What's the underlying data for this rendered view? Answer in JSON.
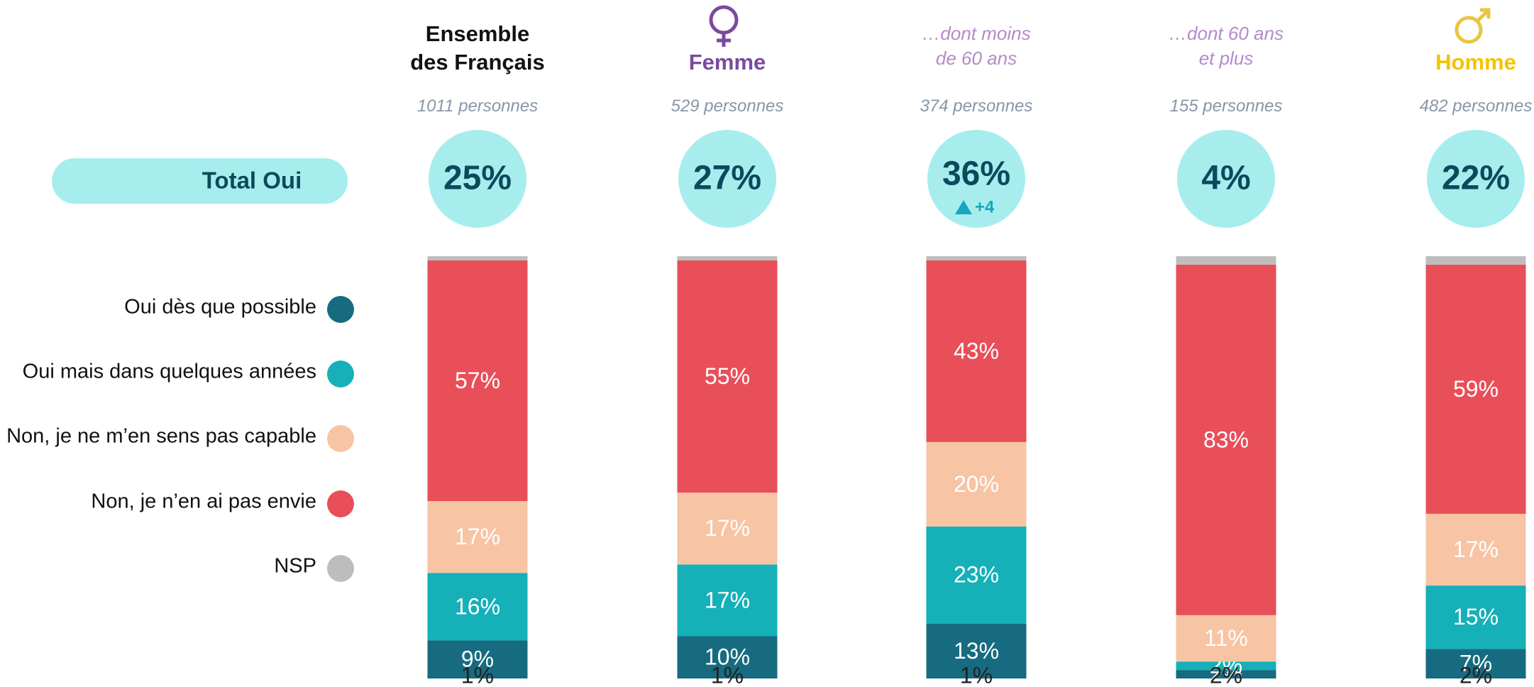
{
  "chart_data": {
    "type": "bar",
    "stacked": true,
    "categories": [
      "Ensemble\ndes Français",
      "Femme",
      "…dont moins\nde 60 ans",
      "…dont 60 ans\net plus",
      "Homme"
    ],
    "category_colors": [
      "#111111",
      "#7b4a9e",
      "#b58ac9",
      "#b58ac9",
      "#f3c300"
    ],
    "sample_sizes": [
      "1011 personnes",
      "529 personnes",
      "374 personnes",
      "155 personnes",
      "482 personnes"
    ],
    "total_label": "Total Oui",
    "totals": {
      "values": [
        25,
        27,
        36,
        4,
        22
      ],
      "value_labels": [
        "25%",
        "27%",
        "36%",
        "4%",
        "22%"
      ]
    },
    "annotations": [
      null,
      null,
      "+4",
      null,
      null
    ],
    "ylim": [
      0,
      100
    ],
    "series": [
      {
        "name": "Oui dès que possible",
        "color": "#176b80",
        "values": [
          9,
          10,
          13,
          2,
          7
        ],
        "value_labels": [
          "9%",
          "10%",
          "13%",
          "2%",
          "7%"
        ]
      },
      {
        "name": "Oui mais dans quelques années",
        "color": "#15b0b8",
        "values": [
          16,
          17,
          23,
          2,
          15
        ],
        "value_labels": [
          "16%",
          "17%",
          "23%",
          "2%",
          "15%"
        ]
      },
      {
        "name": "Non, je ne m’en sens pas capable",
        "color": "#f7c4a4",
        "values": [
          17,
          17,
          20,
          11,
          17
        ],
        "value_labels": [
          "17%",
          "17%",
          "20%",
          "11%",
          "17%"
        ]
      },
      {
        "name": "Non, je n’en ai pas envie",
        "color": "#e84f59",
        "values": [
          57,
          55,
          43,
          83,
          59
        ],
        "value_labels": [
          "57%",
          "55%",
          "43%",
          "83%",
          "59%"
        ]
      },
      {
        "name": "NSP",
        "color": "#bdbdbd",
        "values": [
          1,
          1,
          1,
          2,
          2
        ],
        "value_labels": [
          "1%",
          "1%",
          "1%",
          "2%",
          "2%"
        ]
      }
    ]
  }
}
